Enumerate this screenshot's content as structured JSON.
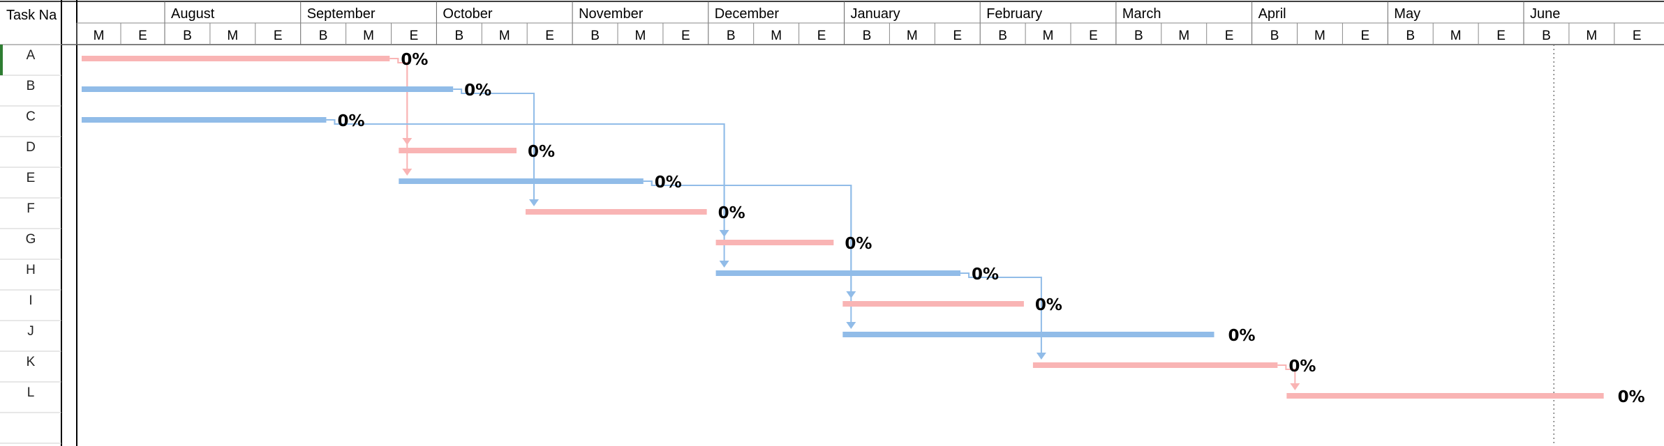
{
  "chart_data": {
    "type": "gantt",
    "column_header": "Task Na",
    "months": [
      "August",
      "September",
      "October",
      "November",
      "December",
      "January",
      "February",
      "March",
      "April",
      "May",
      "June"
    ],
    "subdivisions": [
      "B",
      "M",
      "E"
    ],
    "lead_subdivisions": [
      "M",
      "E"
    ],
    "tasks": [
      {
        "name": "A",
        "start": 0,
        "end": 6.8,
        "color": "#f9b4b4",
        "progress": "0%"
      },
      {
        "name": "B",
        "start": 0,
        "end": 8.2,
        "color": "#91bce8",
        "progress": "0%"
      },
      {
        "name": "C",
        "start": 0,
        "end": 5.4,
        "color": "#91bce8",
        "progress": "0%"
      },
      {
        "name": "D",
        "start": 7.0,
        "end": 9.6,
        "color": "#f9b4b4",
        "progress": "0%"
      },
      {
        "name": "E",
        "start": 7.0,
        "end": 12.4,
        "color": "#91bce8",
        "progress": "0%"
      },
      {
        "name": "F",
        "start": 9.8,
        "end": 13.8,
        "color": "#f9b4b4",
        "progress": "0%"
      },
      {
        "name": "G",
        "start": 14.0,
        "end": 16.6,
        "color": "#f9b4b4",
        "progress": "0%"
      },
      {
        "name": "H",
        "start": 14.0,
        "end": 19.4,
        "color": "#91bce8",
        "progress": "0%"
      },
      {
        "name": "I",
        "start": 16.8,
        "end": 20.8,
        "color": "#f9b4b4",
        "progress": "0%"
      },
      {
        "name": "J",
        "start": 16.8,
        "end": 25.0,
        "color": "#91bce8",
        "progress": "0%"
      },
      {
        "name": "K",
        "start": 21.0,
        "end": 26.4,
        "color": "#f9b4b4",
        "progress": "0%"
      },
      {
        "name": "L",
        "start": 26.6,
        "end": 33.6,
        "color": "#f9b4b4",
        "progress": "0%"
      }
    ],
    "dependencies": [
      {
        "from": "A",
        "to": "D",
        "color": "#f9b4b4"
      },
      {
        "from": "A",
        "to": "E",
        "color": "#f9b4b4"
      },
      {
        "from": "B",
        "to": "F",
        "color": "#91bce8"
      },
      {
        "from": "C",
        "to": "G",
        "color": "#91bce8"
      },
      {
        "from": "C",
        "to": "H",
        "color": "#91bce8"
      },
      {
        "from": "E",
        "to": "I",
        "color": "#91bce8"
      },
      {
        "from": "E",
        "to": "J",
        "color": "#91bce8"
      },
      {
        "from": "H",
        "to": "K",
        "color": "#91bce8"
      },
      {
        "from": "K",
        "to": "L",
        "color": "#f9b4b4"
      }
    ],
    "today_marker": 32.5,
    "grid": false
  }
}
